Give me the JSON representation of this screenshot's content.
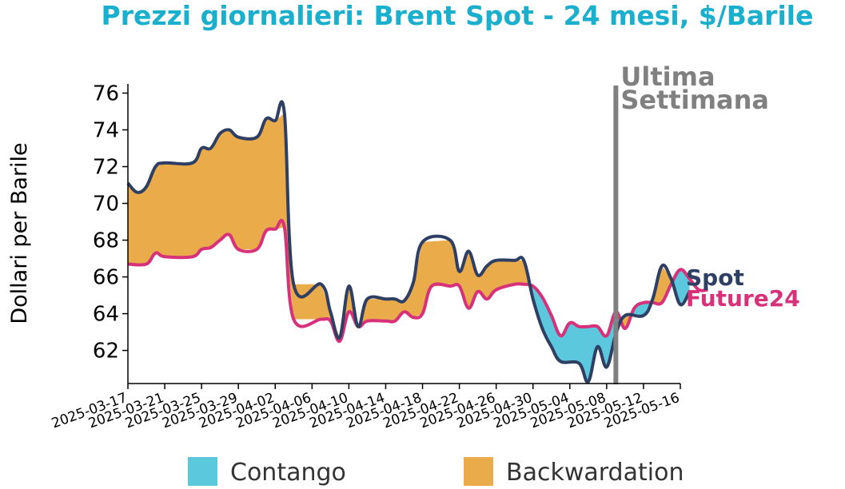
{
  "chart_data": {
    "type": "area",
    "title": "Prezzi giornalieri: Brent Spot - 24 mesi, $/Barile",
    "xlabel": "",
    "ylabel": "Dollari per Barile",
    "xlim": [
      "2025-03-17",
      "2025-05-16"
    ],
    "ylim": [
      60.2,
      76.5
    ],
    "yticks": [
      62,
      64,
      66,
      68,
      70,
      72,
      74,
      76
    ],
    "xticks": [
      "2025-03-17",
      "2025-03-21",
      "2025-03-25",
      "2025-03-29",
      "2025-04-02",
      "2025-04-06",
      "2025-04-10",
      "2025-04-14",
      "2025-04-18",
      "2025-04-22",
      "2025-04-26",
      "2025-04-30",
      "2025-05-04",
      "2025-05-08",
      "2025-05-12",
      "2025-05-16"
    ],
    "grid": false,
    "legend": {
      "placement": "bottom",
      "items": [
        "Contango",
        "Backwardation"
      ]
    },
    "annotation": {
      "text_line1": "Ultima",
      "text_line2": "Settimana",
      "date": "2025-05-09"
    },
    "series": [
      {
        "name": "Spot",
        "color": "#2e3f63",
        "points": [
          [
            "2025-03-17",
            71.1
          ],
          [
            "2025-03-18",
            70.6
          ],
          [
            "2025-03-19",
            70.9
          ],
          [
            "2025-03-20",
            72.0
          ],
          [
            "2025-03-21",
            72.2
          ],
          [
            "2025-03-24",
            72.2
          ],
          [
            "2025-03-25",
            73.0
          ],
          [
            "2025-03-26",
            73.0
          ],
          [
            "2025-03-27",
            73.8
          ],
          [
            "2025-03-28",
            74.0
          ],
          [
            "2025-03-29",
            73.6
          ],
          [
            "2025-03-31",
            73.6
          ],
          [
            "2025-04-01",
            74.6
          ],
          [
            "2025-04-02",
            74.5
          ],
          [
            "2025-04-03",
            74.9
          ],
          [
            "2025-04-04",
            65.6
          ],
          [
            "2025-04-07",
            65.6
          ],
          [
            "2025-04-08",
            64.1
          ],
          [
            "2025-04-09",
            62.7
          ],
          [
            "2025-04-10",
            65.5
          ],
          [
            "2025-04-11",
            63.3
          ],
          [
            "2025-04-12",
            64.8
          ],
          [
            "2025-04-14",
            64.8
          ],
          [
            "2025-04-15",
            64.8
          ],
          [
            "2025-04-16",
            64.7
          ],
          [
            "2025-04-17",
            65.7
          ],
          [
            "2025-04-18",
            67.9
          ],
          [
            "2025-04-21",
            68.0
          ],
          [
            "2025-04-22",
            66.3
          ],
          [
            "2025-04-23",
            67.4
          ],
          [
            "2025-04-24",
            66.1
          ],
          [
            "2025-04-25",
            66.6
          ],
          [
            "2025-04-26",
            66.9
          ],
          [
            "2025-04-28",
            66.9
          ],
          [
            "2025-04-29",
            66.9
          ],
          [
            "2025-04-30",
            64.8
          ],
          [
            "2025-05-01",
            63.2
          ],
          [
            "2025-05-02",
            62.2
          ],
          [
            "2025-05-03",
            61.4
          ],
          [
            "2025-05-05",
            61.3
          ],
          [
            "2025-05-06",
            60.3
          ],
          [
            "2025-05-07",
            62.2
          ],
          [
            "2025-05-08",
            61.1
          ],
          [
            "2025-05-09",
            62.9
          ],
          [
            "2025-05-10",
            63.9
          ],
          [
            "2025-05-12",
            63.9
          ],
          [
            "2025-05-13",
            64.8
          ],
          [
            "2025-05-14",
            66.6
          ],
          [
            "2025-05-15",
            65.9
          ],
          [
            "2025-05-16",
            64.5
          ],
          [
            "2025-05-17",
            65.2
          ]
        ]
      },
      {
        "name": "Future24",
        "color": "#d63179",
        "points": [
          [
            "2025-03-17",
            66.7
          ],
          [
            "2025-03-19",
            66.7
          ],
          [
            "2025-03-20",
            67.3
          ],
          [
            "2025-03-21",
            67.1
          ],
          [
            "2025-03-24",
            67.1
          ],
          [
            "2025-03-25",
            67.5
          ],
          [
            "2025-03-26",
            67.6
          ],
          [
            "2025-03-27",
            68.0
          ],
          [
            "2025-03-28",
            68.3
          ],
          [
            "2025-03-29",
            67.5
          ],
          [
            "2025-03-31",
            67.5
          ],
          [
            "2025-04-01",
            68.5
          ],
          [
            "2025-04-02",
            68.6
          ],
          [
            "2025-04-03",
            68.7
          ],
          [
            "2025-04-04",
            63.7
          ],
          [
            "2025-04-07",
            63.7
          ],
          [
            "2025-04-08",
            63.6
          ],
          [
            "2025-04-09",
            62.5
          ],
          [
            "2025-04-10",
            64.1
          ],
          [
            "2025-04-11",
            63.3
          ],
          [
            "2025-04-12",
            63.6
          ],
          [
            "2025-04-14",
            63.6
          ],
          [
            "2025-04-15",
            63.6
          ],
          [
            "2025-04-16",
            64.1
          ],
          [
            "2025-04-17",
            63.8
          ],
          [
            "2025-04-18",
            64.0
          ],
          [
            "2025-04-19",
            65.5
          ],
          [
            "2025-04-21",
            65.5
          ],
          [
            "2025-04-22",
            65.5
          ],
          [
            "2025-04-23",
            64.3
          ],
          [
            "2025-04-24",
            65.2
          ],
          [
            "2025-04-25",
            64.8
          ],
          [
            "2025-04-26",
            65.3
          ],
          [
            "2025-04-28",
            65.6
          ],
          [
            "2025-04-29",
            65.6
          ],
          [
            "2025-04-30",
            65.5
          ],
          [
            "2025-05-01",
            64.9
          ],
          [
            "2025-05-02",
            63.9
          ],
          [
            "2025-05-03",
            62.8
          ],
          [
            "2025-05-04",
            63.5
          ],
          [
            "2025-05-05",
            63.3
          ],
          [
            "2025-05-06",
            63.3
          ],
          [
            "2025-05-07",
            63.3
          ],
          [
            "2025-05-08",
            62.8
          ],
          [
            "2025-05-09",
            64.1
          ],
          [
            "2025-05-10",
            63.2
          ],
          [
            "2025-05-11",
            64.3
          ],
          [
            "2025-05-12",
            64.6
          ],
          [
            "2025-05-13",
            64.6
          ],
          [
            "2025-05-14",
            64.6
          ],
          [
            "2025-05-15",
            65.6
          ],
          [
            "2025-05-16",
            66.4
          ],
          [
            "2025-05-17",
            65.9
          ],
          [
            "2025-05-18",
            65.3
          ],
          [
            "2025-05-19",
            65.3
          ]
        ]
      }
    ],
    "colors": {
      "contango": "#5bc8de",
      "backwardation": "#eaab4b",
      "title": "#1aafcd",
      "annotation": "#808080",
      "axis": "#000000"
    }
  }
}
